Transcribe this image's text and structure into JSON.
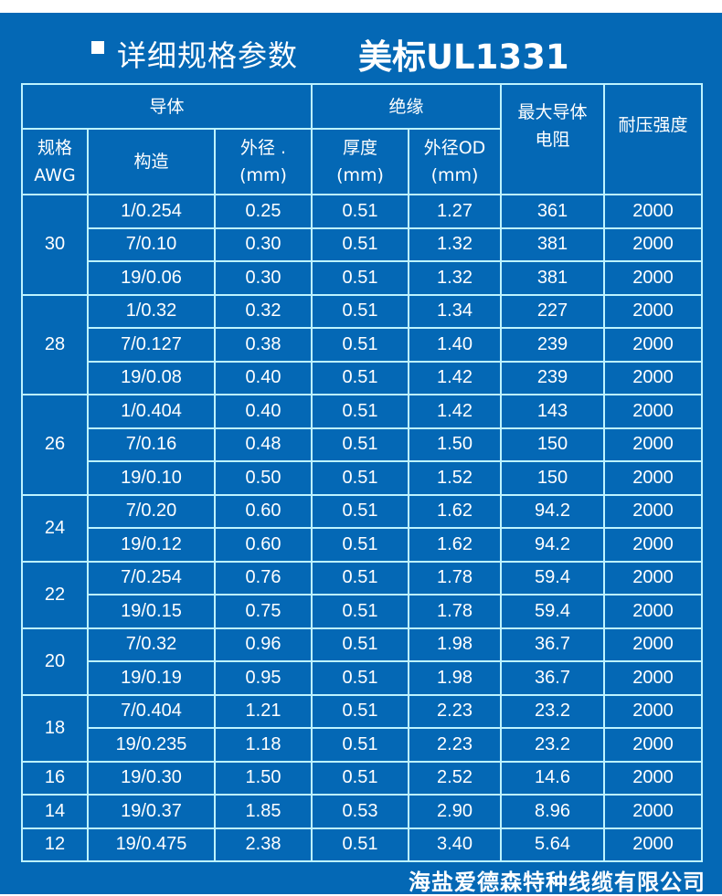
{
  "title": {
    "bullet_icon": "square-bullet",
    "heading": "详细规格参数",
    "standard": "美标UL1331"
  },
  "headers": {
    "conductor": "导体",
    "insulation": "绝缘",
    "max_resistance": "最大导体电阻",
    "max_resistance_l1": "最大导体",
    "max_resistance_l2": "电阻",
    "withstand_voltage": "耐压强度",
    "awg_l1": "规格",
    "awg_l2": "AWG",
    "construction": "构造",
    "cond_od_l1": "外径 .",
    "cond_od_l2": "(mm)",
    "thickness_l1": "厚度",
    "thickness_l2": "(mm)",
    "ins_od_l1": "外径OD",
    "ins_od_l2": "(mm)"
  },
  "groups": [
    {
      "awg": "30",
      "rows": [
        {
          "construction": "1/0.254",
          "cond_od": "0.25",
          "thickness": "0.51",
          "ins_od": "1.27",
          "resistance": "361",
          "voltage": "2000"
        },
        {
          "construction": "7/0.10",
          "cond_od": "0.30",
          "thickness": "0.51",
          "ins_od": "1.32",
          "resistance": "381",
          "voltage": "2000"
        },
        {
          "construction": "19/0.06",
          "cond_od": "0.30",
          "thickness": "0.51",
          "ins_od": "1.32",
          "resistance": "381",
          "voltage": "2000"
        }
      ]
    },
    {
      "awg": "28",
      "rows": [
        {
          "construction": "1/0.32",
          "cond_od": "0.32",
          "thickness": "0.51",
          "ins_od": "1.34",
          "resistance": "227",
          "voltage": "2000"
        },
        {
          "construction": "7/0.127",
          "cond_od": "0.38",
          "thickness": "0.51",
          "ins_od": "1.40",
          "resistance": "239",
          "voltage": "2000"
        },
        {
          "construction": "19/0.08",
          "cond_od": "0.40",
          "thickness": "0.51",
          "ins_od": "1.42",
          "resistance": "239",
          "voltage": "2000"
        }
      ]
    },
    {
      "awg": "26",
      "rows": [
        {
          "construction": "1/0.404",
          "cond_od": "0.40",
          "thickness": "0.51",
          "ins_od": "1.42",
          "resistance": "143",
          "voltage": "2000"
        },
        {
          "construction": "7/0.16",
          "cond_od": "0.48",
          "thickness": "0.51",
          "ins_od": "1.50",
          "resistance": "150",
          "voltage": "2000"
        },
        {
          "construction": "19/0.10",
          "cond_od": "0.50",
          "thickness": "0.51",
          "ins_od": "1.52",
          "resistance": "150",
          "voltage": "2000"
        }
      ]
    },
    {
      "awg": "24",
      "rows": [
        {
          "construction": "7/0.20",
          "cond_od": "0.60",
          "thickness": "0.51",
          "ins_od": "1.62",
          "resistance": "94.2",
          "voltage": "2000"
        },
        {
          "construction": "19/0.12",
          "cond_od": "0.60",
          "thickness": "0.51",
          "ins_od": "1.62",
          "resistance": "94.2",
          "voltage": "2000"
        }
      ]
    },
    {
      "awg": "22",
      "rows": [
        {
          "construction": "7/0.254",
          "cond_od": "0.76",
          "thickness": "0.51",
          "ins_od": "1.78",
          "resistance": "59.4",
          "voltage": "2000"
        },
        {
          "construction": "19/0.15",
          "cond_od": "0.75",
          "thickness": "0.51",
          "ins_od": "1.78",
          "resistance": "59.4",
          "voltage": "2000"
        }
      ]
    },
    {
      "awg": "20",
      "rows": [
        {
          "construction": "7/0.32",
          "cond_od": "0.96",
          "thickness": "0.51",
          "ins_od": "1.98",
          "resistance": "36.7",
          "voltage": "2000"
        },
        {
          "construction": "19/0.19",
          "cond_od": "0.95",
          "thickness": "0.51",
          "ins_od": "1.98",
          "resistance": "36.7",
          "voltage": "2000"
        }
      ]
    },
    {
      "awg": "18",
      "rows": [
        {
          "construction": "7/0.404",
          "cond_od": "1.21",
          "thickness": "0.51",
          "ins_od": "2.23",
          "resistance": "23.2",
          "voltage": "2000"
        },
        {
          "construction": "19/0.235",
          "cond_od": "1.18",
          "thickness": "0.51",
          "ins_od": "2.23",
          "resistance": "23.2",
          "voltage": "2000"
        }
      ]
    },
    {
      "awg": "16",
      "rows": [
        {
          "construction": "19/0.30",
          "cond_od": "1.50",
          "thickness": "0.51",
          "ins_od": "2.52",
          "resistance": "14.6",
          "voltage": "2000"
        }
      ]
    },
    {
      "awg": "14",
      "rows": [
        {
          "construction": "19/0.37",
          "cond_od": "1.85",
          "thickness": "0.53",
          "ins_od": "2.90",
          "resistance": "8.96",
          "voltage": "2000"
        }
      ]
    },
    {
      "awg": "12",
      "rows": [
        {
          "construction": "19/0.475",
          "cond_od": "2.38",
          "thickness": "0.51",
          "ins_od": "3.40",
          "resistance": "5.64",
          "voltage": "2000"
        }
      ]
    }
  ],
  "footer": {
    "company": "海盐爱德森特种线缆有限公司"
  },
  "colors": {
    "background": "#0468b5",
    "border": "#bdf3ff",
    "text": "#ffffff"
  }
}
